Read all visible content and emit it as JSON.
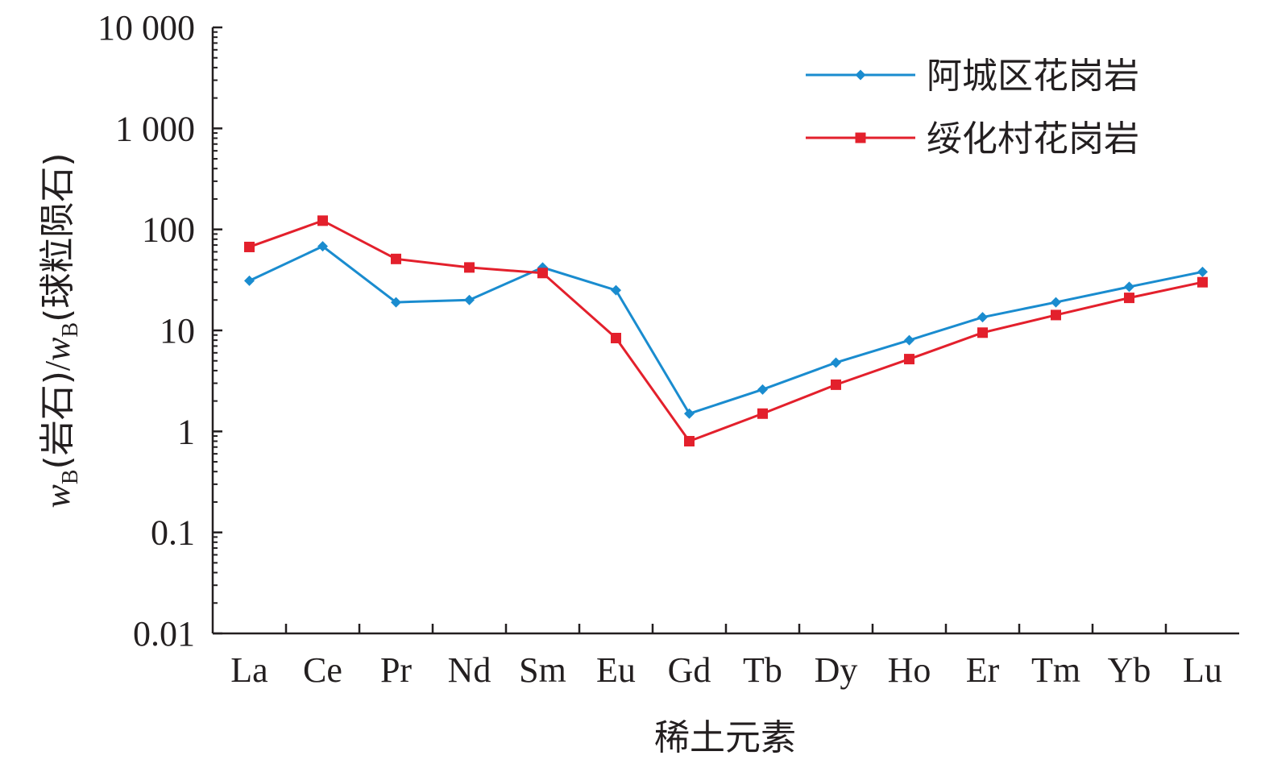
{
  "chart_data": {
    "type": "line",
    "title": "",
    "xlabel": "稀土元素",
    "ylabel": {
      "var1": "w",
      "sub1": "B",
      "paren1": "(岩石)",
      "slash": "/",
      "var2": "w",
      "sub2": "B",
      "paren2": "(球粒陨石)"
    },
    "yscale": "log",
    "ylim": [
      0.01,
      10000
    ],
    "y_ticks": [
      0.01,
      0.1,
      1,
      10,
      100,
      1000,
      10000
    ],
    "y_tick_labels": [
      "0.01",
      "0.1",
      "1",
      "10",
      "100",
      "1 000",
      "10 000"
    ],
    "categories": [
      "La",
      "Ce",
      "Pr",
      "Nd",
      "Sm",
      "Eu",
      "Gd",
      "Tb",
      "Dy",
      "Ho",
      "Er",
      "Tm",
      "Yb",
      "Lu"
    ],
    "legend_position": "top-right",
    "grid": false,
    "series": [
      {
        "name": "阿城区花岗岩",
        "color": "#1a8ccf",
        "marker": "diamond",
        "values": [
          31,
          68,
          19,
          20,
          42,
          25,
          1.5,
          2.6,
          4.8,
          8,
          13.5,
          19,
          27,
          38
        ]
      },
      {
        "name": "绥化村花岗岩",
        "color": "#e3202c",
        "marker": "square",
        "values": [
          67,
          122,
          51,
          42,
          37,
          8.4,
          0.8,
          1.5,
          2.9,
          5.2,
          9.5,
          14.2,
          21,
          30
        ]
      }
    ]
  }
}
